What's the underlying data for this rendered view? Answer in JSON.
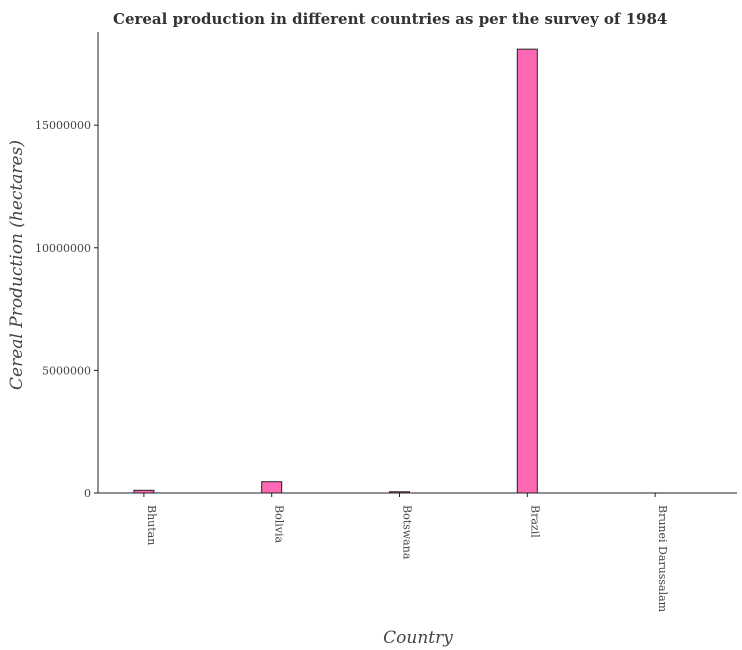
{
  "chart_data": {
    "type": "bar",
    "title": "Cereal production in different countries as per the survey of 1984",
    "xlabel": "Country",
    "ylabel": "Cereal Production (hectares)",
    "categories": [
      "Bhutan",
      "Bolivia",
      "Botswana",
      "Brazil",
      "Brunei Darussalam"
    ],
    "values": [
      110000,
      460000,
      50000,
      18100000,
      1000
    ],
    "ylim": [
      0,
      18800000
    ],
    "yticks": [
      0,
      5000000,
      10000000,
      15000000
    ],
    "ytick_labels": [
      "0",
      "5000000",
      "10000000",
      "15000000"
    ],
    "bar_color": "#ff69b4",
    "grid": false,
    "legend": "none"
  }
}
